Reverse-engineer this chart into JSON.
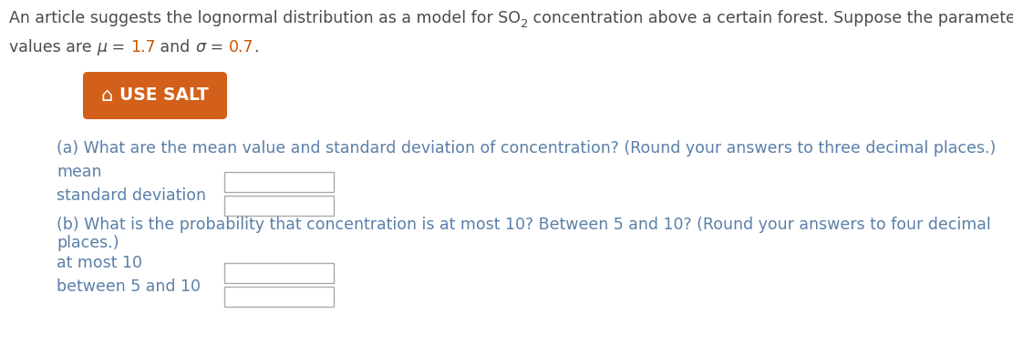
{
  "background_color": "#ffffff",
  "text_color_dark": "#4a4a4a",
  "text_color_orange": "#cc5500",
  "text_color_blue": "#5a7fa8",
  "button_color": "#d2601a",
  "button_text": "USE SALT",
  "figsize": [
    11.11,
    4.0
  ],
  "dpi": 100,
  "fs_body": 12.5,
  "fs_button": 13.5,
  "fs_sub": 8.5,
  "line2_parts": [
    {
      "text": "values are ",
      "color": "#4a4a4a",
      "style": "normal",
      "weight": "normal"
    },
    {
      "text": "μ",
      "color": "#4a4a4a",
      "style": "italic",
      "weight": "normal"
    },
    {
      "text": " = ",
      "color": "#4a4a4a",
      "style": "normal",
      "weight": "normal"
    },
    {
      "text": "1.7",
      "color": "#cc5500",
      "style": "normal",
      "weight": "normal"
    },
    {
      "text": " and ",
      "color": "#4a4a4a",
      "style": "normal",
      "weight": "normal"
    },
    {
      "text": "σ",
      "color": "#4a4a4a",
      "style": "italic",
      "weight": "normal"
    },
    {
      "text": " = ",
      "color": "#4a4a4a",
      "style": "normal",
      "weight": "normal"
    },
    {
      "text": "0.7",
      "color": "#cc5500",
      "style": "normal",
      "weight": "normal"
    },
    {
      "text": ".",
      "color": "#4a4a4a",
      "style": "normal",
      "weight": "normal"
    }
  ],
  "part_a_question": "(a) What are the mean value and standard deviation of concentration? (Round your answers to three decimal places.)",
  "part_a_mean": "mean",
  "part_a_sd": "standard deviation",
  "part_b_q1": "(b) What is the probability that concentration is at most 10? Between 5 and 10? (Round your answers to four decimal",
  "part_b_q2": "places.)",
  "part_b_l1": "at most 10",
  "part_b_l2": "between 5 and 10",
  "box_color": "#ffffff",
  "box_edge": "#aaaaaa"
}
